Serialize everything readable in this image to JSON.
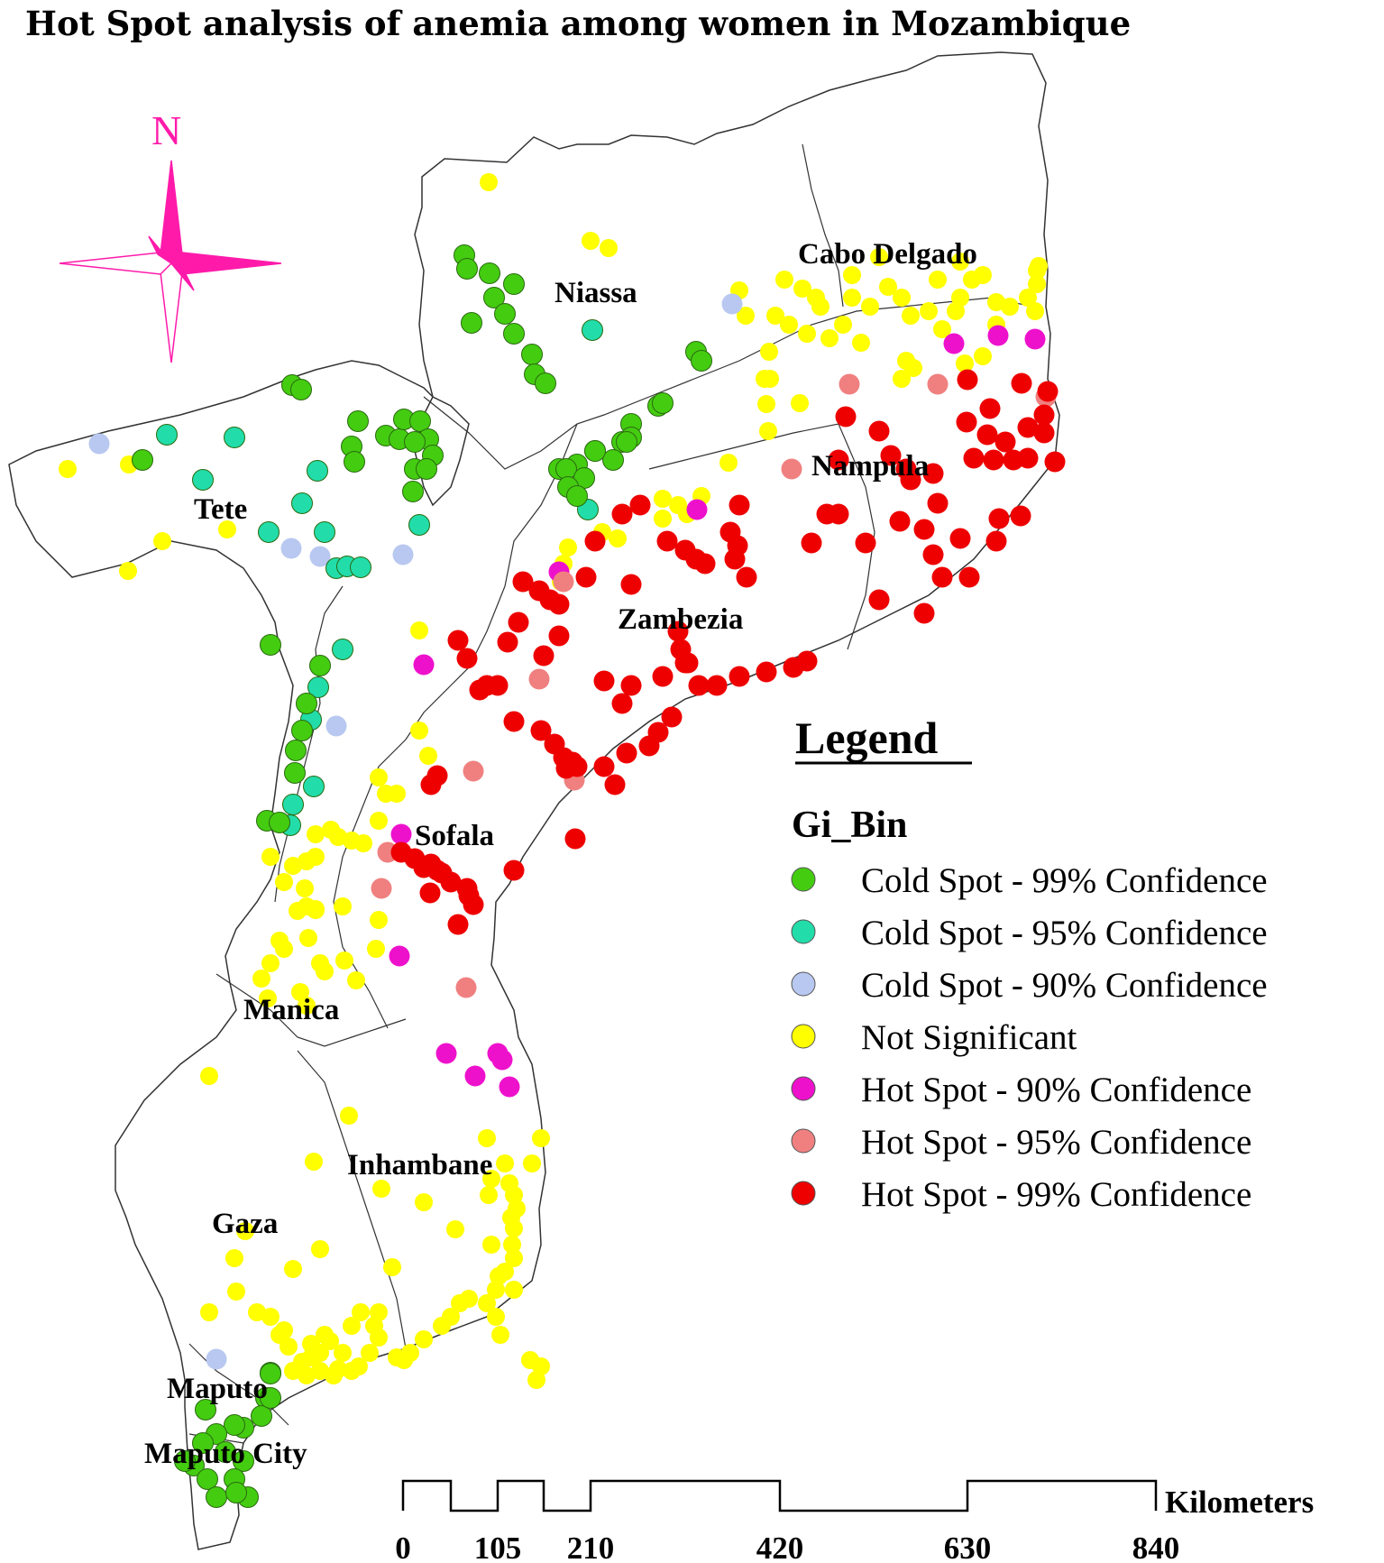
{
  "title": "Hot Spot analysis of anemia among women in Mozambique",
  "north_arrow": {
    "label": "N",
    "color": "#ff1aaa"
  },
  "provinces": [
    "Niassa",
    "Cabo Delgado",
    "Tete",
    "Nampula",
    "Zambezia",
    "Sofala",
    "Manica",
    "Inhambane",
    "Gaza",
    "Maputo",
    "Maputo City"
  ],
  "legend": {
    "title": "Legend",
    "field": "Gi_Bin",
    "items": [
      {
        "label": "Cold Spot - 99% Confidence",
        "color": "#44cc11"
      },
      {
        "label": "Cold Spot - 95% Confidence",
        "color": "#22ddaa"
      },
      {
        "label": "Cold Spot - 90% Confidence",
        "color": "#b8c8f0"
      },
      {
        "label": "Not Significant",
        "color": "#ffff00"
      },
      {
        "label": "Hot Spot - 90% Confidence",
        "color": "#ee11cc"
      },
      {
        "label": "Hot Spot - 95% Confidence",
        "color": "#f08080"
      },
      {
        "label": "Hot Spot - 99% Confidence",
        "color": "#ee0000"
      }
    ]
  },
  "scale_bar": {
    "unit": "Kilometers",
    "ticks": [
      "0",
      "105",
      "210",
      "420",
      "630",
      "840"
    ]
  }
}
